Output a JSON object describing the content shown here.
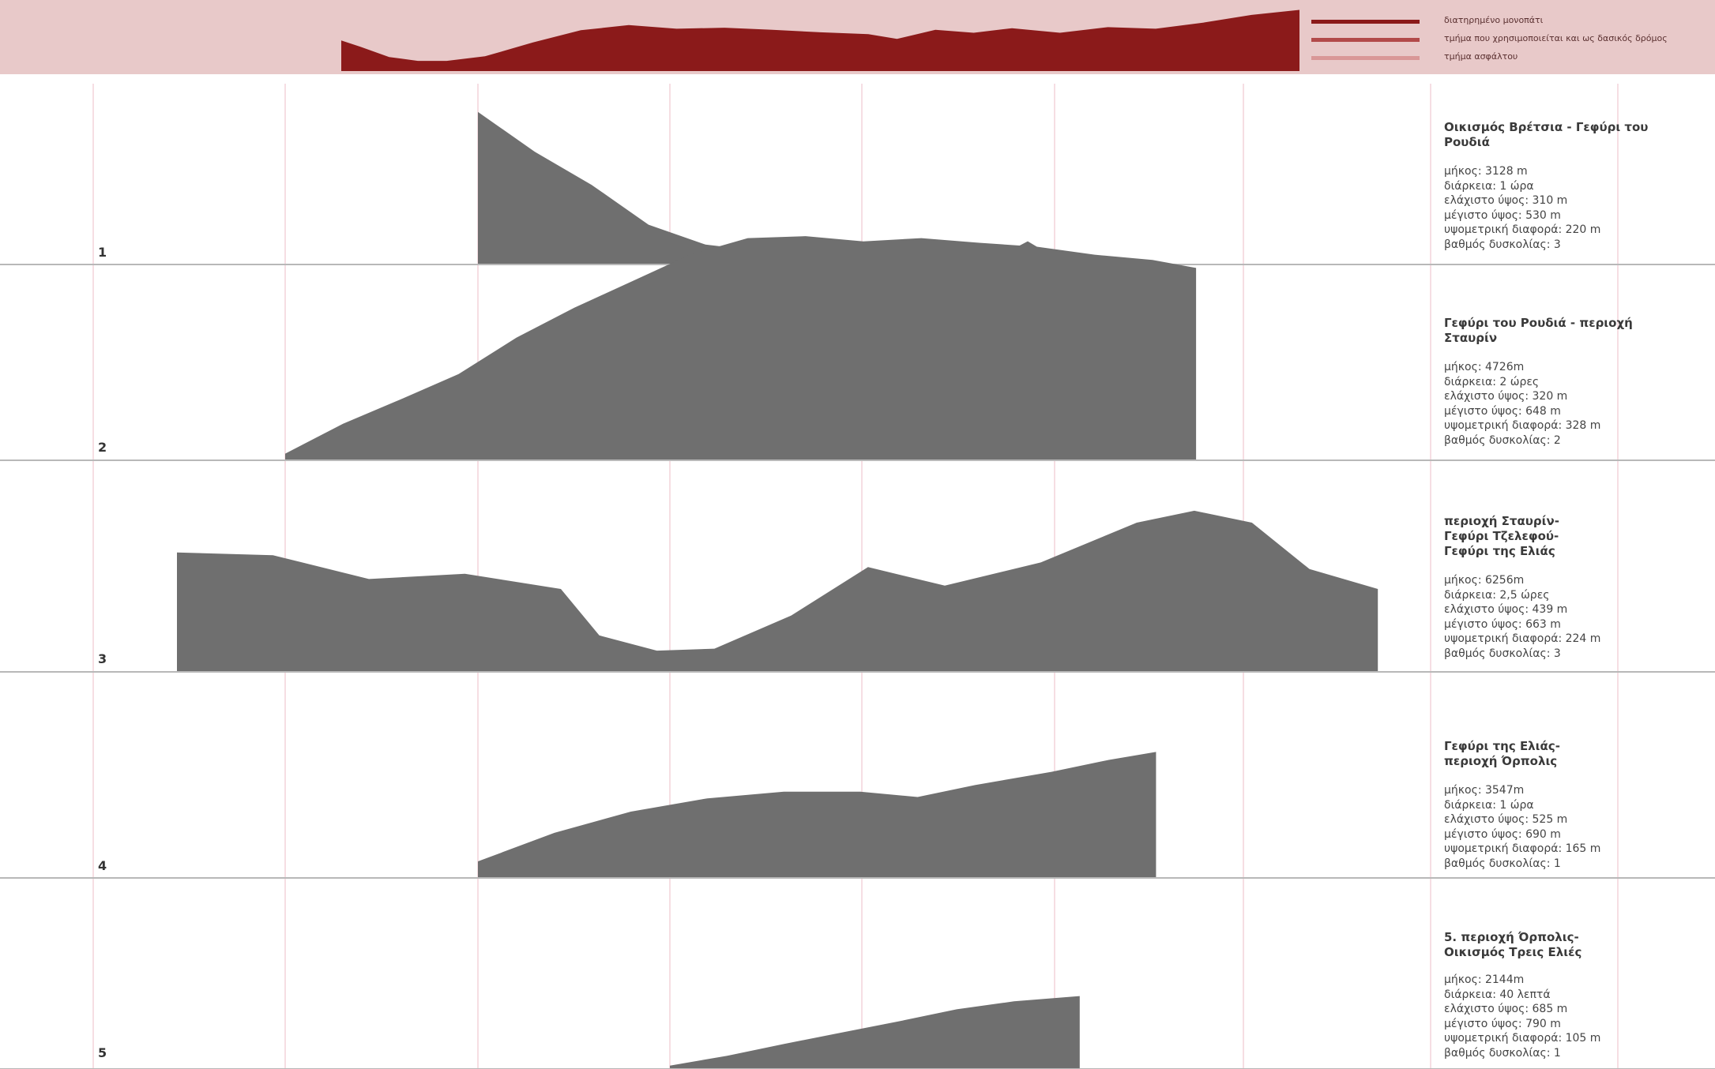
{
  "header": {
    "legend": [
      {
        "label": "διατηρημένο μονοπάτι",
        "color": "#8b1a1a"
      },
      {
        "label": "τμήμα που χρησιμοποιείται και ως δασικός δρόμος",
        "color": "#b24a4a"
      },
      {
        "label": "τμήμα ασφάλτου",
        "color": "#d99797"
      }
    ],
    "colors": {
      "band": "#e8c9c9",
      "profile": "#8b1a1a"
    }
  },
  "chart_data": [
    {
      "type": "area",
      "name": "overview",
      "series": [
        {
          "x": [
            0,
            2,
            5,
            8,
            11,
            15,
            20,
            25,
            30,
            35,
            40,
            45,
            50,
            55,
            58,
            62,
            66,
            70,
            75,
            80,
            85,
            90,
            95,
            100
          ],
          "values": [
            380,
            355,
            315,
            300,
            300,
            318,
            372,
            420,
            440,
            426,
            430,
            422,
            412,
            405,
            386,
            422,
            410,
            428,
            410,
            432,
            426,
            450,
            480,
            500
          ]
        }
      ],
      "ylim": [
        260,
        520
      ],
      "color": "#8b1a1a"
    },
    {
      "type": "area",
      "number": "1",
      "title": "Οικισμός Βρέτσια - Γεφύρι του Ρουδιά",
      "stats": [
        "μήκος: 3128 m",
        "διάρκεια: 1 ώρα",
        "ελάχιστο ύψος: 310 m",
        "μέγιστο ύψος: 530 m",
        "υψομετρική διαφορά: 220 m",
        "βαθμός δυσκολίας: 3"
      ],
      "x": [
        0,
        0.1,
        0.3,
        0.6,
        0.9,
        1.2,
        1.5,
        1.8,
        2.1,
        2.4,
        2.6,
        2.8,
        2.9,
        3.0,
        3.128
      ],
      "values": [
        530,
        510,
        470,
        420,
        360,
        330,
        320,
        312,
        310,
        318,
        318,
        320,
        335,
        318,
        316
      ],
      "color": "#6f6f6f"
    },
    {
      "type": "area",
      "number": "2",
      "title": "Γεφύρι του Ρουδιά - περιοχή Σταυρίν",
      "stats": [
        "μήκος: 4726m",
        "διάρκεια: 2 ώρες",
        "ελάχιστο ύψος: 320 m",
        "μέγιστο ύψος: 648 m",
        "υψομετρική διαφορά: 328 m",
        "βαθμός δυσκολίας: 2"
      ],
      "x": [
        0,
        0.3,
        0.6,
        0.9,
        1.2,
        1.5,
        1.8,
        2.1,
        2.4,
        2.7,
        3.0,
        3.3,
        3.6,
        3.9,
        4.2,
        4.5,
        4.726
      ],
      "values": [
        320,
        365,
        402,
        440,
        495,
        540,
        580,
        620,
        645,
        648,
        640,
        645,
        638,
        632,
        620,
        612,
        600
      ],
      "color": "#6f6f6f"
    },
    {
      "type": "area",
      "number": "3",
      "title": "περιοχή Σταυρίν- Γεφύρι Τζελεφού- Γεφύρι της Ελιάς",
      "stats": [
        "μήκος: 6256m",
        "διάρκεια: 2,5 ώρες",
        "ελάχιστο ύψος: 439 m",
        "μέγιστο ύψος: 663 m",
        "υψομετρική διαφορά: 224 m",
        "βαθμός δυσκολίας: 3"
      ],
      "x": [
        0,
        0.5,
        1.0,
        1.5,
        2.0,
        2.2,
        2.5,
        2.8,
        3.2,
        3.6,
        4.0,
        4.5,
        5.0,
        5.3,
        5.6,
        5.9,
        6.256
      ],
      "values": [
        600,
        596,
        560,
        568,
        545,
        475,
        452,
        455,
        505,
        578,
        550,
        585,
        645,
        663,
        645,
        575,
        545
      ],
      "color": "#6f6f6f"
    },
    {
      "type": "area",
      "number": "4",
      "title": "Γεφύρι της Ελιάς- περιοχή Όρπολις",
      "stats": [
        "μήκος: 3547m",
        "διάρκεια: 1 ώρα",
        "ελάχιστο ύψος: 525 m",
        "μέγιστο ύψος: 690 m",
        "υψομετρική διαφορά: 165 m",
        "βαθμός δυσκολίας: 1"
      ],
      "x": [
        0,
        0.4,
        0.8,
        1.2,
        1.6,
        2.0,
        2.3,
        2.6,
        3.0,
        3.3,
        3.547
      ],
      "values": [
        525,
        568,
        600,
        620,
        630,
        630,
        622,
        640,
        660,
        678,
        690
      ],
      "color": "#6f6f6f"
    },
    {
      "type": "area",
      "number": "5",
      "title": "5. περιοχή Όρπολις- Οικισμός Τρεις Ελιές",
      "stats": [
        "μήκος: 2144m",
        "διάρκεια: 40 λεπτά",
        "ελάχιστο ύψος: 685 m",
        "μέγιστο ύψος: 790 m",
        "υψομετρική διαφορά: 105 m",
        "βαθμός δυσκολίας: 1"
      ],
      "x": [
        0,
        0.3,
        0.6,
        0.9,
        1.2,
        1.5,
        1.8,
        2.144
      ],
      "values": [
        685,
        700,
        718,
        735,
        752,
        770,
        782,
        790
      ],
      "color": "#6f6f6f"
    }
  ]
}
